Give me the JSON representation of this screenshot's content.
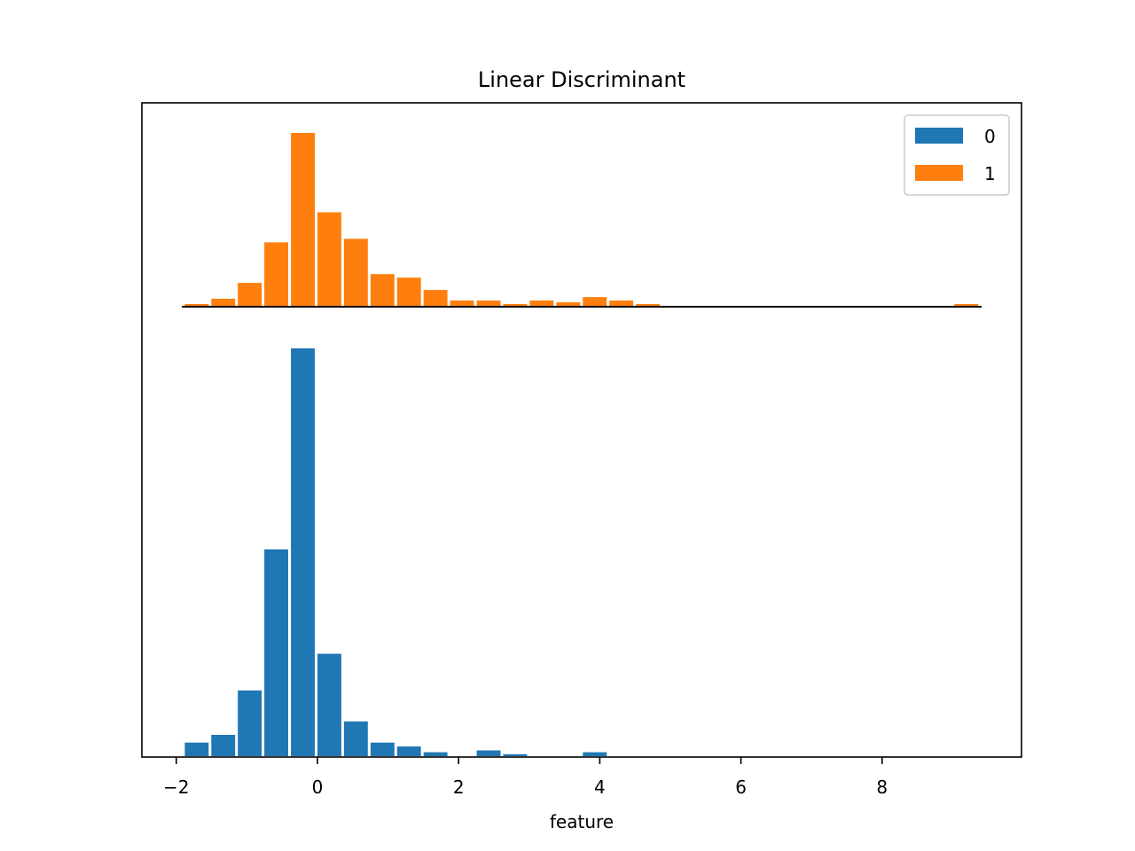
{
  "chart_data": {
    "type": "bar",
    "title": "Linear Discriminant",
    "xlabel": "feature",
    "ylabel": "",
    "xlim": [
      -2.5,
      9.8
    ],
    "xticks": [
      -2,
      0,
      2,
      4,
      6,
      8
    ],
    "xtick_labels": [
      "−2",
      "0",
      "2",
      "4",
      "6",
      "8"
    ],
    "bin_width": 0.376,
    "bin_start": -1.88,
    "legend": {
      "position": "top-right",
      "entries": [
        "0",
        "1"
      ]
    },
    "series": [
      {
        "name": "1",
        "color": "#ff7f0e",
        "values": [
          1,
          4,
          13,
          36,
          98,
          53,
          38,
          18,
          16,
          9,
          3,
          3,
          1,
          3,
          2,
          5,
          3,
          1,
          0,
          0,
          0,
          0,
          0,
          0,
          0,
          0,
          0,
          0,
          0,
          1
        ]
      },
      {
        "name": "0",
        "color": "#1f77b4",
        "values": [
          7,
          11,
          34,
          107,
          211,
          53,
          18,
          7,
          5,
          2,
          0,
          3,
          1,
          0,
          0,
          2,
          0,
          0,
          0,
          0,
          0,
          0,
          0,
          0,
          0,
          0,
          0,
          0,
          0,
          0
        ]
      }
    ]
  }
}
